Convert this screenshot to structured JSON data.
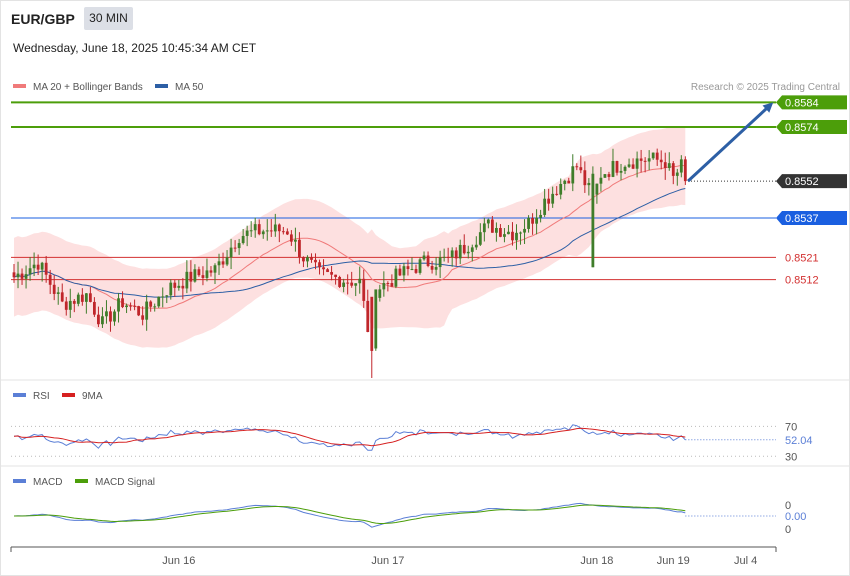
{
  "header": {
    "symbol": "EUR/GBP",
    "timeframe": "30 MIN",
    "datetime": "Wednesday, June 18, 2025 10:45:34 AM CET"
  },
  "chart_data": [
    {
      "type": "candlestick",
      "title": "",
      "legend": [
        {
          "name": "MA 20 + Bollinger Bands",
          "color": "#f07a7a"
        },
        {
          "name": "MA 50",
          "color": "#2d5fa5"
        }
      ],
      "legend_placement": "top-left",
      "credit": "Research © 2025 Trading Central",
      "ylim": [
        0.8472,
        0.8587
      ],
      "levels": [
        {
          "value": 0.8584,
          "label": "0.8584",
          "kind": "target",
          "color": "#4c9e0a"
        },
        {
          "value": 0.8574,
          "label": "0.8574",
          "kind": "target",
          "color": "#4c9e0a"
        },
        {
          "value": 0.8552,
          "label": "0.8552",
          "kind": "last",
          "color": "#333333"
        },
        {
          "value": 0.8537,
          "label": "0.8537",
          "kind": "pivot",
          "color": "#1a5fe0"
        },
        {
          "value": 0.8521,
          "label": "0.8521",
          "kind": "support",
          "color": "#d33030"
        },
        {
          "value": 0.8512,
          "label": "0.8512",
          "kind": "support",
          "color": "#d33030"
        }
      ],
      "arrow": {
        "from": 0.8552,
        "to": 0.8584,
        "color": "#2d5fa5"
      },
      "key_points": [
        [
          0,
          0.8513
        ],
        [
          6,
          0.8519
        ],
        [
          12,
          0.8502
        ],
        [
          18,
          0.8506
        ],
        [
          22,
          0.8494
        ],
        [
          27,
          0.8503
        ],
        [
          32,
          0.8498
        ],
        [
          38,
          0.8508
        ],
        [
          44,
          0.8513
        ],
        [
          50,
          0.8516
        ],
        [
          56,
          0.853
        ],
        [
          62,
          0.8532
        ],
        [
          68,
          0.8532
        ],
        [
          72,
          0.8521
        ],
        [
          76,
          0.8514
        ],
        [
          82,
          0.8512
        ],
        [
          86,
          0.8511
        ],
        [
          89,
          0.8483
        ],
        [
          90,
          0.8508
        ],
        [
          96,
          0.8514
        ],
        [
          102,
          0.8519
        ],
        [
          108,
          0.852
        ],
        [
          112,
          0.8525
        ],
        [
          118,
          0.8534
        ],
        [
          124,
          0.8531
        ],
        [
          128,
          0.8535
        ],
        [
          132,
          0.8544
        ],
        [
          140,
          0.8558
        ],
        [
          144,
          0.8545
        ],
        [
          146,
          0.8555
        ],
        [
          152,
          0.856
        ],
        [
          158,
          0.8561
        ],
        [
          162,
          0.856
        ],
        [
          164,
          0.8553
        ],
        [
          166,
          0.8558
        ],
        [
          167,
          0.8552
        ]
      ],
      "spike": {
        "index": 144,
        "low": 0.8517
      }
    },
    {
      "type": "line",
      "legend": [
        {
          "name": "RSI",
          "color": "#5b7fd6"
        },
        {
          "name": "9MA",
          "color": "#d62020"
        }
      ],
      "ylim": [
        25,
        100
      ],
      "levels": [
        {
          "value": 70,
          "label": "70"
        },
        {
          "value": 30,
          "label": "30"
        }
      ],
      "last_label": "52.04",
      "last_value": 52.04
    },
    {
      "type": "line",
      "legend": [
        {
          "name": "MACD",
          "color": "#5b7fd6"
        },
        {
          "name": "MACD Signal",
          "color": "#4c9e0a"
        }
      ],
      "labels": [
        "0",
        "0.00",
        "0"
      ],
      "last_value": 0.0
    }
  ],
  "x_axis": {
    "ticks": [
      {
        "label": "Jun 16",
        "index": 41
      },
      {
        "label": "Jun 17",
        "index": 93
      },
      {
        "label": "Jun 18",
        "index": 145
      },
      {
        "label": "Jun 19",
        "index": 164
      },
      {
        "label": "Jul 4",
        "index": 182
      }
    ]
  }
}
